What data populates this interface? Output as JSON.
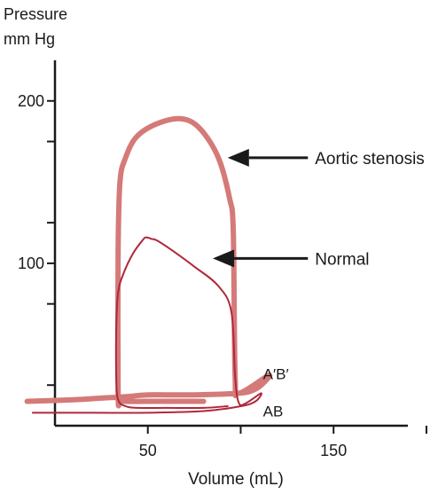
{
  "chart_data": {
    "type": "line",
    "ylabel_line1": "Pressure",
    "ylabel_line2": "mm Hg",
    "xlabel": "Volume (mL)",
    "xlim": [
      0,
      190
    ],
    "ylim": [
      0,
      225
    ],
    "yticks": [
      {
        "value": 25,
        "label": ""
      },
      {
        "value": 75,
        "label": ""
      },
      {
        "value": 100,
        "label": "100"
      },
      {
        "value": 125,
        "label": ""
      },
      {
        "value": 175,
        "label": ""
      },
      {
        "value": 200,
        "label": "200"
      }
    ],
    "xticks": [
      {
        "value": 50,
        "label": "50"
      },
      {
        "value": 100,
        "label": ""
      },
      {
        "value": 150,
        "label": "150"
      },
      {
        "value": 200,
        "label": ""
      }
    ],
    "annotations": [
      {
        "text": "Aortic stenosis",
        "target_series": 0,
        "target": [
          93,
          165
        ],
        "text_at": [
          140,
          165
        ]
      },
      {
        "text": "Normal",
        "target_series": 1,
        "target": [
          85,
          103
        ],
        "text_at": [
          140,
          103
        ]
      }
    ],
    "point_labels": [
      {
        "text": "A′B′",
        "at": [
          112,
          32
        ]
      },
      {
        "text": "AB",
        "at": [
          112,
          9
        ]
      }
    ],
    "series": [
      {
        "color": "#d47a78",
        "points": [
          [
            -15,
            15
          ],
          [
            10,
            16
          ],
          [
            25,
            17
          ],
          [
            40,
            18
          ],
          [
            50,
            19
          ],
          [
            75,
            19
          ],
          [
            99,
            20
          ],
          [
            107,
            22
          ],
          [
            112,
            26
          ],
          [
            115,
            31
          ],
          [
            99,
            20
          ],
          [
            97,
            30
          ],
          [
            96,
            120
          ],
          [
            94,
            140
          ],
          [
            88,
            165
          ],
          [
            78,
            183
          ],
          [
            68,
            189
          ],
          [
            55,
            186
          ],
          [
            44,
            178
          ],
          [
            38,
            165
          ],
          [
            35,
            150
          ],
          [
            34,
            107
          ],
          [
            34,
            20
          ],
          [
            35,
            16
          ],
          [
            38,
            15
          ],
          [
            50,
            15
          ],
          [
            60,
            15
          ],
          [
            80,
            15
          ]
        ]
      },
      {
        "color": "#b0283a",
        "points": [
          [
            -12,
            8
          ],
          [
            20,
            8
          ],
          [
            50,
            8
          ],
          [
            80,
            9
          ],
          [
            100,
            12
          ],
          [
            108,
            15
          ],
          [
            111,
            20
          ],
          [
            103,
            14
          ],
          [
            99,
            14
          ],
          [
            97,
            30
          ],
          [
            95,
            70
          ],
          [
            88,
            86
          ],
          [
            75,
            98
          ],
          [
            63,
            108
          ],
          [
            55,
            114
          ],
          [
            52,
            115
          ],
          [
            49,
            116
          ],
          [
            47,
            114
          ],
          [
            42,
            106
          ],
          [
            37,
            94
          ],
          [
            34,
            82
          ],
          [
            33,
            60
          ],
          [
            33,
            30
          ],
          [
            34,
            16
          ],
          [
            38,
            12
          ],
          [
            45,
            11
          ],
          [
            60,
            11
          ],
          [
            80,
            11
          ],
          [
            93,
            12
          ]
        ]
      }
    ]
  }
}
